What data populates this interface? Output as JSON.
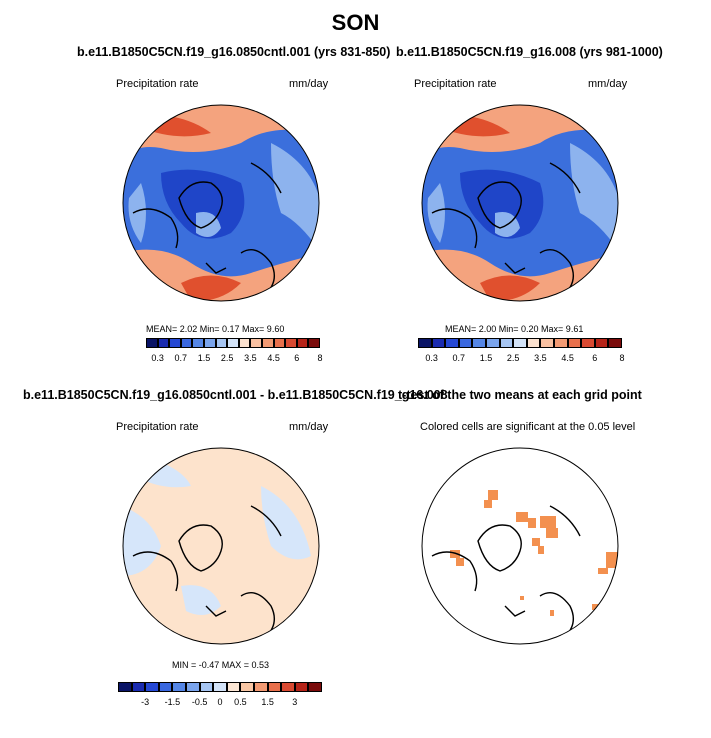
{
  "figure": {
    "title": "SON"
  },
  "panels": [
    {
      "title": "b.e11.B1850C5CN.f19_g16.0850cntl.001 (yrs 831-850)",
      "left_label": "Precipitation rate",
      "right_label": "mm/day",
      "stats": "MEAN=  2.02  Min=   0.17  Max=   9.60"
    },
    {
      "title": "b.e11.B1850C5CN.f19_g16.008 (yrs 981-1000)",
      "left_label": "Precipitation rate",
      "right_label": "mm/day",
      "stats": "MEAN=  2.00  Min=   0.20  Max=   9.61"
    },
    {
      "title": "b.e11.B1850C5CN.f19_g16.0850cntl.001 - b.e11.B1850C5CN.f19_g16.008",
      "left_label": "Precipitation rate",
      "right_label": "mm/day",
      "stats": "MIN =  -0.47  MAX =   0.53"
    },
    {
      "title": "t-test of the two means at each grid point",
      "left_label": "Colored cells are significant at the 0.05 level"
    }
  ],
  "colorbars": {
    "precip": {
      "colors": [
        "#0a1466",
        "#1a2bb0",
        "#2548d4",
        "#3a68e0",
        "#5586e6",
        "#7aa4ec",
        "#a6c5f2",
        "#d3e3f8",
        "#fbe1cf",
        "#f8c0a1",
        "#f29a73",
        "#e8704c",
        "#d84a32",
        "#b52419",
        "#7a0b0b"
      ],
      "tick_labels": [
        "0.3",
        "0.7",
        "1.5",
        "2.5",
        "3.5",
        "4.5",
        "6",
        "8"
      ]
    },
    "diff": {
      "colors": [
        "#0a1466",
        "#1a2bb0",
        "#2548d4",
        "#3a68e0",
        "#5586e6",
        "#7aa4ec",
        "#a6c5f2",
        "#d3e3f8",
        "#fce6d4",
        "#f9c7a5",
        "#f29a73",
        "#e8704c",
        "#d84a32",
        "#b52419",
        "#7a0b0b"
      ],
      "tick_labels": [
        "-3",
        "-1.5",
        "-0.5",
        "0",
        "0.5",
        "1.5",
        "3"
      ]
    }
  },
  "colors": {
    "map_deep_blue": "#1f45c8",
    "map_blue": "#3b6fdc",
    "map_light_blue": "#8db3ee",
    "map_red": "#e0502e",
    "map_orange": "#f4a37e",
    "diff_peach": "#fde3cc",
    "diff_light_blue": "#d6e6fa",
    "significant": "#f3904f"
  }
}
